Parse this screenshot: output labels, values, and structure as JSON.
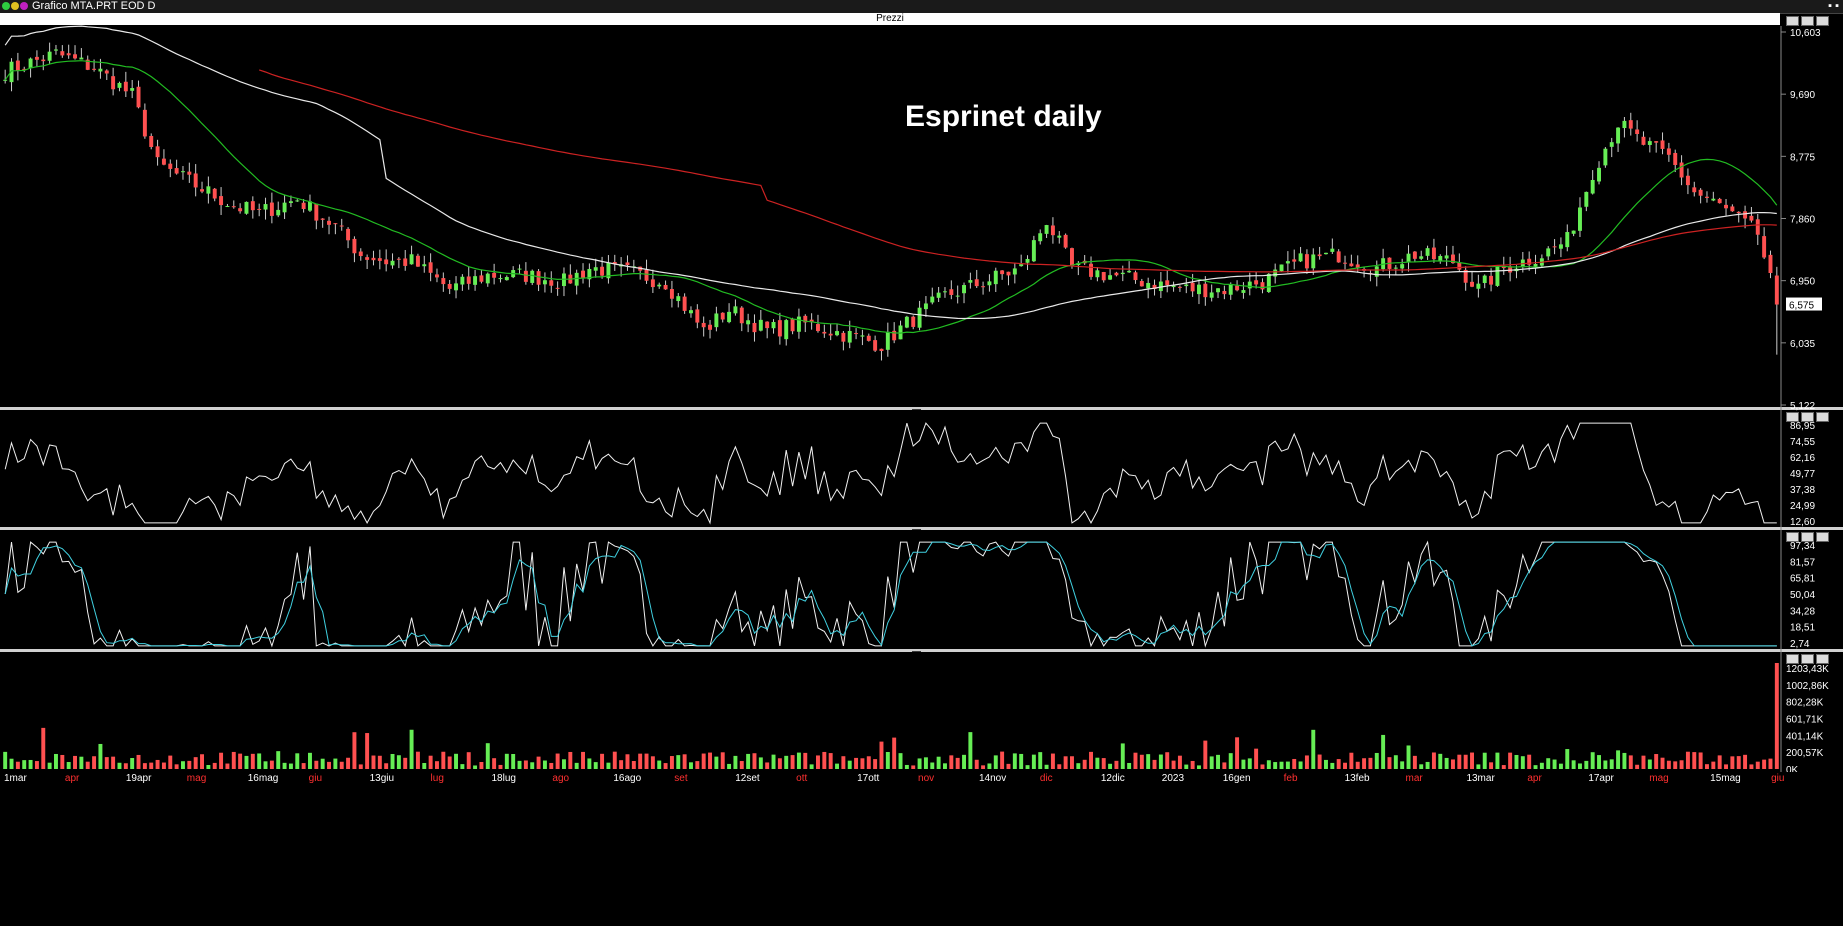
{
  "window": {
    "title": "Grafico MTA.PRT EOD D"
  },
  "price_pane": {
    "header": "Prezzi",
    "title": "Esprinet daily",
    "last_value": "6,575",
    "y_labels": [
      "10,603",
      "9,690",
      "8,775",
      "7,860",
      "6,950",
      "6,035",
      "5,122"
    ]
  },
  "rsi_pane": {
    "y_labels": [
      "86,95",
      "74,55",
      "62,16",
      "49,77",
      "37,38",
      "24,99",
      "12,60"
    ]
  },
  "stoch_pane": {
    "y_labels": [
      "97,34",
      "81,57",
      "65,81",
      "50,04",
      "34,28",
      "18,51",
      "2,74"
    ]
  },
  "volume_pane": {
    "y_labels": [
      "1203,43K",
      "1002,86K",
      "802,28K",
      "601,71K",
      "401,14K",
      "200,57K",
      "0K"
    ]
  },
  "x_axis": [
    {
      "label": "1mar",
      "color": "#ffffff"
    },
    {
      "label": "apr",
      "color": "#ff3030"
    },
    {
      "label": "19apr",
      "color": "#ffffff"
    },
    {
      "label": "mag",
      "color": "#ff3030"
    },
    {
      "label": "16mag",
      "color": "#ffffff"
    },
    {
      "label": "giu",
      "color": "#ff3030"
    },
    {
      "label": "13giu",
      "color": "#ffffff"
    },
    {
      "label": "lug",
      "color": "#ff3030"
    },
    {
      "label": "18lug",
      "color": "#ffffff"
    },
    {
      "label": "ago",
      "color": "#ff3030"
    },
    {
      "label": "16ago",
      "color": "#ffffff"
    },
    {
      "label": "set",
      "color": "#ff3030"
    },
    {
      "label": "12set",
      "color": "#ffffff"
    },
    {
      "label": "ott",
      "color": "#ff3030"
    },
    {
      "label": "17ott",
      "color": "#ffffff"
    },
    {
      "label": "nov",
      "color": "#ff3030"
    },
    {
      "label": "14nov",
      "color": "#ffffff"
    },
    {
      "label": "dic",
      "color": "#ff3030"
    },
    {
      "label": "12dic",
      "color": "#ffffff"
    },
    {
      "label": "2023",
      "color": "#ffffff"
    },
    {
      "label": "16gen",
      "color": "#ffffff"
    },
    {
      "label": "feb",
      "color": "#ff3030"
    },
    {
      "label": "13feb",
      "color": "#ffffff"
    },
    {
      "label": "mar",
      "color": "#ff3030"
    },
    {
      "label": "13mar",
      "color": "#ffffff"
    },
    {
      "label": "apr",
      "color": "#ff3030"
    },
    {
      "label": "17apr",
      "color": "#ffffff"
    },
    {
      "label": "mag",
      "color": "#ff3030"
    },
    {
      "label": "15mag",
      "color": "#ffffff"
    },
    {
      "label": "giu",
      "color": "#ff3030"
    }
  ],
  "colors": {
    "up": "#66ee55",
    "down": "#ff5050",
    "ma_short": "#22bb22",
    "ma_mid": "#e8e8e8",
    "ma_long": "#cc2222",
    "stoch_signal": "#40d0e0"
  },
  "chart_data": {
    "type": "line",
    "title": "Esprinet daily",
    "price_ylim": [
      5.122,
      10.603
    ],
    "price_close_keypoints": [
      [
        0,
        9.95
      ],
      [
        8,
        10.2
      ],
      [
        14,
        10.0
      ],
      [
        20,
        9.6
      ],
      [
        24,
        8.6
      ],
      [
        30,
        8.3
      ],
      [
        36,
        8.0
      ],
      [
        40,
        7.9
      ],
      [
        46,
        8.1
      ],
      [
        52,
        7.7
      ],
      [
        56,
        7.3
      ],
      [
        60,
        7.2
      ],
      [
        64,
        7.2
      ],
      [
        70,
        6.8
      ],
      [
        76,
        7.0
      ],
      [
        82,
        7.0
      ],
      [
        88,
        6.9
      ],
      [
        92,
        7.1
      ],
      [
        98,
        7.05
      ],
      [
        104,
        6.9
      ],
      [
        110,
        6.2
      ],
      [
        114,
        6.5
      ],
      [
        120,
        6.2
      ],
      [
        126,
        6.3
      ],
      [
        132,
        6.15
      ],
      [
        138,
        6.0
      ],
      [
        142,
        6.3
      ],
      [
        148,
        6.7
      ],
      [
        154,
        6.9
      ],
      [
        160,
        7.1
      ],
      [
        164,
        7.8
      ],
      [
        168,
        7.1
      ],
      [
        174,
        7.0
      ],
      [
        180,
        6.9
      ],
      [
        186,
        6.8
      ],
      [
        192,
        6.8
      ],
      [
        198,
        6.9
      ],
      [
        204,
        7.2
      ],
      [
        210,
        7.3
      ],
      [
        216,
        7.1
      ],
      [
        222,
        7.3
      ],
      [
        228,
        7.2
      ],
      [
        232,
        6.8
      ],
      [
        236,
        7.1
      ],
      [
        242,
        7.3
      ],
      [
        246,
        7.5
      ],
      [
        250,
        8.5
      ],
      [
        254,
        9.2
      ],
      [
        258,
        8.9
      ],
      [
        262,
        8.7
      ],
      [
        266,
        8.2
      ],
      [
        270,
        8.0
      ],
      [
        276,
        7.6
      ],
      [
        279,
        6.575
      ]
    ],
    "n_bars": 280,
    "rsi_ylim": [
      12.6,
      86.95
    ],
    "stoch_ylim": [
      2.74,
      97.34
    ],
    "volume_ylim": [
      0,
      1203.43
    ],
    "volume_last_k": 1203.43
  }
}
